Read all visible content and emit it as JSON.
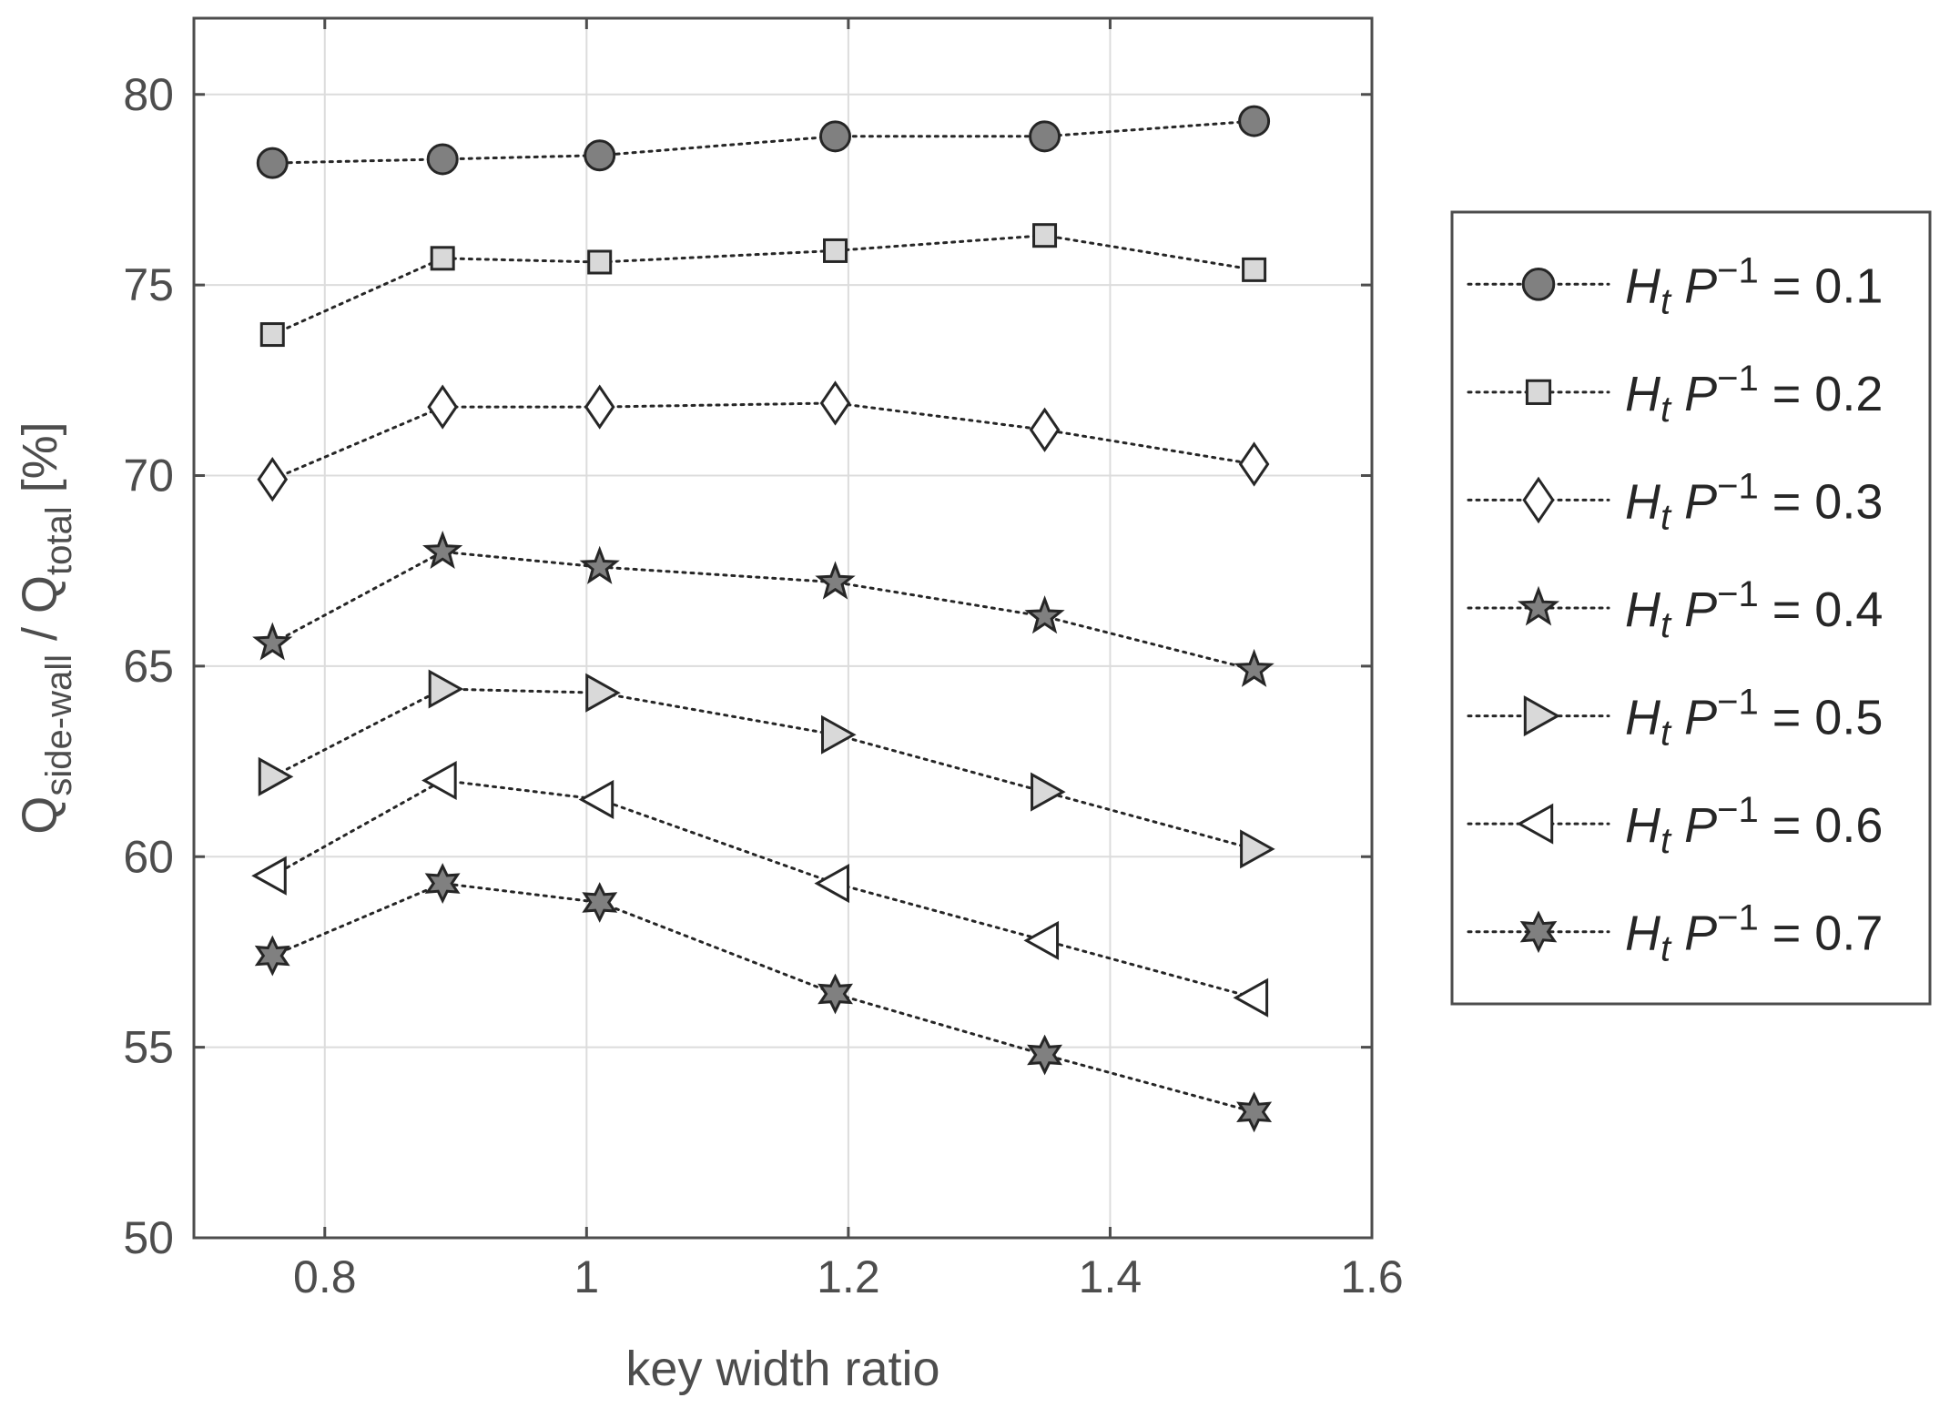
{
  "chart_data": {
    "type": "line",
    "title": "",
    "xlabel": "key width ratio",
    "ylabel": {
      "parts": [
        {
          "text": "Q",
          "style": "normal"
        },
        {
          "text": "side-wall",
          "style": "sub"
        },
        {
          "text": " / Q",
          "style": "normal"
        },
        {
          "text": "total",
          "style": "sub"
        },
        {
          "text": " [%]",
          "style": "normal"
        }
      ]
    },
    "xlim": [
      0.7,
      1.6
    ],
    "ylim": [
      50,
      82
    ],
    "xticks": [
      0.8,
      1,
      1.2,
      1.4,
      1.6
    ],
    "xtick_labels": [
      "0.8",
      "1",
      "1.2",
      "1.4",
      "1.6"
    ],
    "yticks": [
      50,
      55,
      60,
      65,
      70,
      75,
      80
    ],
    "ytick_labels": [
      "50",
      "55",
      "60",
      "65",
      "70",
      "75",
      "80"
    ],
    "grid": true,
    "legend_position": "outside-right",
    "line_style": "dotted",
    "x": [
      0.76,
      0.89,
      1.01,
      1.19,
      1.35,
      1.51
    ],
    "series": [
      {
        "name": "H_t P^{-1} = 0.1",
        "label_var": "H",
        "label_sub": "t",
        "label_p": "P",
        "label_sup": "−1",
        "label_value": " = 0.1",
        "marker": "circle",
        "fill": "#808080",
        "values": [
          78.2,
          78.3,
          78.4,
          78.9,
          78.9,
          79.3
        ]
      },
      {
        "name": "H_t P^{-1} = 0.2",
        "label_var": "H",
        "label_sub": "t",
        "label_p": "P",
        "label_sup": "−1",
        "label_value": " = 0.2",
        "marker": "square",
        "fill": "#d9d9d9",
        "values": [
          73.7,
          75.7,
          75.6,
          75.9,
          76.3,
          75.4
        ]
      },
      {
        "name": "H_t P^{-1} = 0.3",
        "label_var": "H",
        "label_sub": "t",
        "label_p": "P",
        "label_sup": "−1",
        "label_value": " = 0.3",
        "marker": "diamond",
        "fill": "#ffffff",
        "values": [
          69.9,
          71.8,
          71.8,
          71.9,
          71.2,
          70.3
        ]
      },
      {
        "name": "H_t P^{-1} = 0.4",
        "label_var": "H",
        "label_sub": "t",
        "label_p": "P",
        "label_sup": "−1",
        "label_value": " = 0.4",
        "marker": "pentagram",
        "fill": "#808080",
        "values": [
          65.6,
          68.0,
          67.6,
          67.2,
          66.3,
          64.9
        ]
      },
      {
        "name": "H_t P^{-1} = 0.5",
        "label_var": "H",
        "label_sub": "t",
        "label_p": "P",
        "label_sup": "−1",
        "label_value": " = 0.5",
        "marker": "triangle-right",
        "fill": "#d9d9d9",
        "values": [
          62.1,
          64.4,
          64.3,
          63.2,
          61.7,
          60.2
        ]
      },
      {
        "name": "H_t P^{-1} = 0.6",
        "label_var": "H",
        "label_sub": "t",
        "label_p": "P",
        "label_sup": "−1",
        "label_value": " = 0.6",
        "marker": "triangle-left",
        "fill": "#ffffff",
        "values": [
          59.5,
          62.0,
          61.5,
          59.3,
          57.8,
          56.3
        ]
      },
      {
        "name": "H_t P^{-1} = 0.7",
        "label_var": "H",
        "label_sub": "t",
        "label_p": "P",
        "label_sup": "−1",
        "label_value": " = 0.7",
        "marker": "hexagram",
        "fill": "#808080",
        "values": [
          57.4,
          59.3,
          58.8,
          56.4,
          54.8,
          53.3
        ]
      }
    ],
    "colors": {
      "axis": "#4d4d4d",
      "grid": "#dcdcdc",
      "text": "#4d4d4d",
      "marker_edge": "#262626",
      "line": "#262626"
    }
  }
}
